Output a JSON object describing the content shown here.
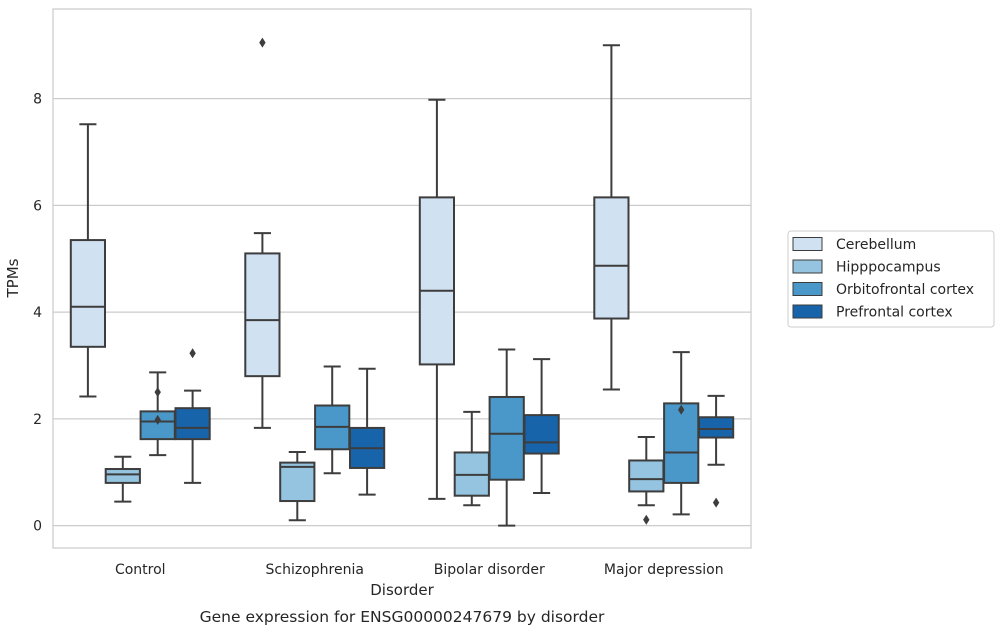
{
  "chart_data": {
    "type": "box",
    "caption": "Gene expression for ENSG00000247679 by disorder",
    "xlabel": "Disorder",
    "ylabel": "TPMs",
    "ylim": [
      -0.42,
      9.68
    ],
    "yticks": [
      0,
      2,
      4,
      6,
      8
    ],
    "grid": "horizontal",
    "legend_placement": "center-right",
    "categories": [
      "Control",
      "Schizophrenia",
      "Bipolar disorder",
      "Major depression"
    ],
    "series": [
      {
        "name": "Cerebellum",
        "color": "#d0e1f2",
        "boxes": [
          {
            "whisker_low": 2.42,
            "q1": 3.35,
            "median": 4.1,
            "q3": 5.35,
            "whisker_high": 7.52,
            "outliers": []
          },
          {
            "whisker_low": 1.83,
            "q1": 2.8,
            "median": 3.85,
            "q3": 5.1,
            "whisker_high": 5.48,
            "outliers": [
              9.05
            ]
          },
          {
            "whisker_low": 0.5,
            "q1": 3.02,
            "median": 4.4,
            "q3": 6.15,
            "whisker_high": 7.98,
            "outliers": []
          },
          {
            "whisker_low": 2.55,
            "q1": 3.88,
            "median": 4.87,
            "q3": 6.15,
            "whisker_high": 9.0,
            "outliers": []
          }
        ]
      },
      {
        "name": "Hipppocampus",
        "color": "#94c4df",
        "boxes": [
          {
            "whisker_low": 0.45,
            "q1": 0.8,
            "median": 0.96,
            "q3": 1.06,
            "whisker_high": 1.29,
            "outliers": []
          },
          {
            "whisker_low": 0.1,
            "q1": 0.46,
            "median": 1.1,
            "q3": 1.18,
            "whisker_high": 1.38,
            "outliers": []
          },
          {
            "whisker_low": 0.38,
            "q1": 0.56,
            "median": 0.95,
            "q3": 1.37,
            "whisker_high": 2.13,
            "outliers": []
          },
          {
            "whisker_low": 0.38,
            "q1": 0.64,
            "median": 0.87,
            "q3": 1.22,
            "whisker_high": 1.66,
            "outliers": [
              0.11
            ]
          }
        ]
      },
      {
        "name": "Orbitofrontal cortex",
        "color": "#4a98c9",
        "boxes": [
          {
            "whisker_low": 1.32,
            "q1": 1.62,
            "median": 1.95,
            "q3": 2.14,
            "whisker_high": 2.87,
            "outliers": [
              2.5,
              1.98
            ]
          },
          {
            "whisker_low": 0.98,
            "q1": 1.43,
            "median": 1.85,
            "q3": 2.25,
            "whisker_high": 2.98,
            "outliers": []
          },
          {
            "whisker_low": 0.0,
            "q1": 0.86,
            "median": 1.72,
            "q3": 2.41,
            "whisker_high": 3.3,
            "outliers": []
          },
          {
            "whisker_low": 0.21,
            "q1": 0.8,
            "median": 1.37,
            "q3": 2.29,
            "whisker_high": 3.25,
            "outliers": [
              2.17
            ]
          }
        ]
      },
      {
        "name": "Prefrontal cortex",
        "color": "#1764ab",
        "boxes": [
          {
            "whisker_low": 0.8,
            "q1": 1.62,
            "median": 1.83,
            "q3": 2.2,
            "whisker_high": 2.53,
            "outliers": [
              3.23
            ]
          },
          {
            "whisker_low": 0.58,
            "q1": 1.08,
            "median": 1.45,
            "q3": 1.83,
            "whisker_high": 2.94,
            "outliers": []
          },
          {
            "whisker_low": 0.61,
            "q1": 1.35,
            "median": 1.56,
            "q3": 2.07,
            "whisker_high": 3.12,
            "outliers": []
          },
          {
            "whisker_low": 1.14,
            "q1": 1.65,
            "median": 1.81,
            "q3": 2.03,
            "whisker_high": 2.43,
            "outliers": [
              0.43
            ]
          }
        ]
      }
    ]
  }
}
